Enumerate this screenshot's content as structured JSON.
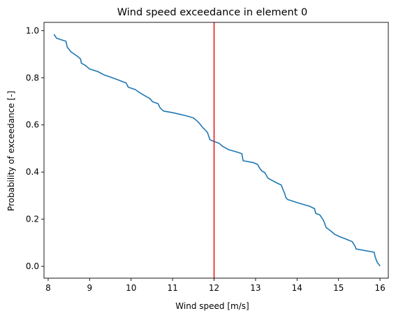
{
  "chart_data": {
    "type": "line",
    "title": "Wind speed exceedance in element 0",
    "xlabel": "Wind speed [m/s]",
    "ylabel": "Probability of exceedance [-]",
    "xlim": [
      7.9,
      16.2
    ],
    "ylim": [
      -0.05,
      1.035
    ],
    "xticks": [
      8,
      9,
      10,
      11,
      12,
      13,
      14,
      15,
      16
    ],
    "yticks": [
      0.0,
      0.2,
      0.4,
      0.6,
      0.8,
      1.0
    ],
    "xtick_labels": [
      "8",
      "9",
      "10",
      "11",
      "12",
      "13",
      "14",
      "15",
      "16"
    ],
    "ytick_labels": [
      "0.0",
      "0.2",
      "0.4",
      "0.6",
      "0.8",
      "1.0"
    ],
    "grid": false,
    "series": [
      {
        "color": "#1f77b4",
        "x": [
          8.14,
          8.2,
          8.3,
          8.43,
          8.46,
          8.55,
          8.7,
          8.78,
          8.8,
          8.9,
          9.0,
          9.2,
          9.35,
          9.5,
          9.7,
          9.88,
          9.93,
          10.1,
          10.18,
          10.3,
          10.45,
          10.52,
          10.65,
          10.7,
          10.78,
          11.0,
          11.3,
          11.5,
          11.6,
          11.65,
          11.73,
          11.78,
          11.84,
          11.9,
          12.0,
          12.12,
          12.2,
          12.35,
          12.55,
          12.67,
          12.7,
          12.95,
          13.05,
          13.1,
          13.15,
          13.22,
          13.3,
          13.5,
          13.62,
          13.66,
          13.7,
          13.73,
          13.78,
          14.05,
          14.3,
          14.42,
          14.45,
          14.55,
          14.62,
          14.65,
          14.7,
          14.8,
          14.9,
          15.0,
          15.15,
          15.33,
          15.4,
          15.42,
          15.86,
          15.88,
          15.93,
          16.0
        ],
        "y": [
          0.985,
          0.968,
          0.962,
          0.955,
          0.93,
          0.91,
          0.892,
          0.88,
          0.862,
          0.852,
          0.837,
          0.826,
          0.812,
          0.803,
          0.79,
          0.778,
          0.76,
          0.75,
          0.74,
          0.727,
          0.712,
          0.698,
          0.69,
          0.672,
          0.659,
          0.652,
          0.64,
          0.63,
          0.615,
          0.606,
          0.588,
          0.58,
          0.568,
          0.537,
          0.53,
          0.522,
          0.51,
          0.495,
          0.485,
          0.478,
          0.448,
          0.44,
          0.432,
          0.416,
          0.405,
          0.398,
          0.374,
          0.355,
          0.345,
          0.326,
          0.31,
          0.292,
          0.283,
          0.268,
          0.255,
          0.245,
          0.225,
          0.218,
          0.2,
          0.19,
          0.165,
          0.152,
          0.137,
          0.128,
          0.118,
          0.105,
          0.085,
          0.074,
          0.06,
          0.042,
          0.018,
          0.002
        ]
      }
    ],
    "vline": {
      "x": 12.0,
      "color": "#e31a1c"
    }
  }
}
